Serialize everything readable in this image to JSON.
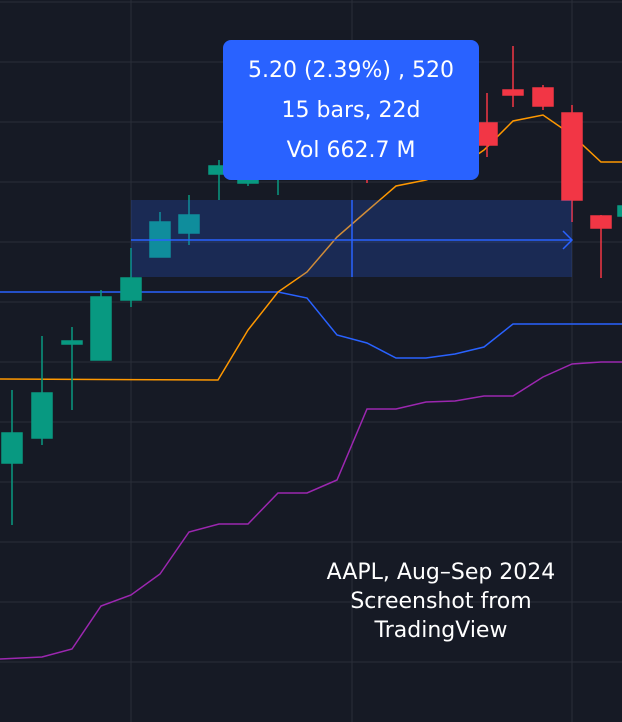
{
  "tooltip": {
    "lines": [
      "5.20 (2.39%) , 520",
      "15 bars, 22d",
      "Vol 662.7 M"
    ]
  },
  "caption": {
    "lines": [
      "AAPL, Aug–Sep 2024",
      "Screenshot from",
      "TradingView"
    ]
  }
}
